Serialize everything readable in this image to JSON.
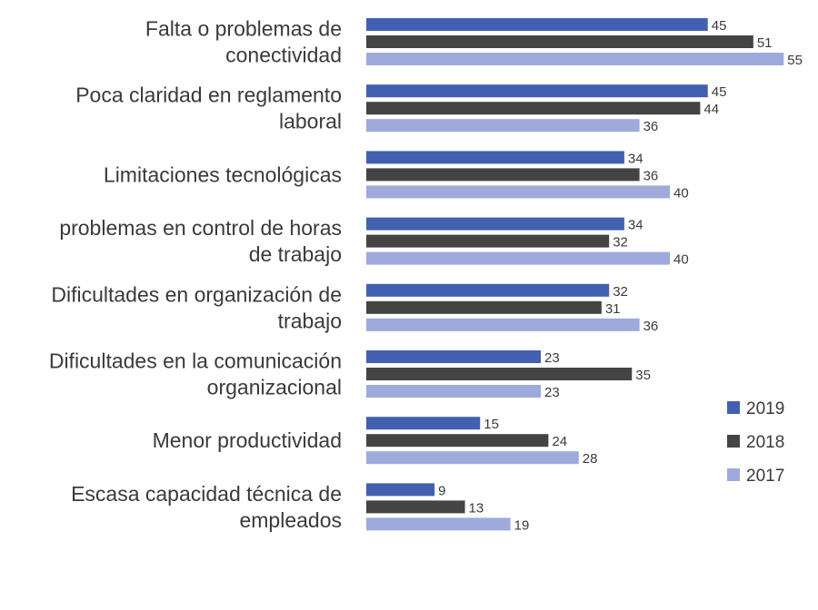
{
  "chart_data": {
    "type": "bar",
    "orientation": "horizontal",
    "categories": [
      [
        "Falta o problemas de",
        "conectividad"
      ],
      [
        "Poca claridad en reglamento",
        "laboral"
      ],
      [
        "Limitaciones tecnológicas"
      ],
      [
        "problemas en control de horas",
        "de trabajo"
      ],
      [
        "Dificultades en organización de",
        "trabajo"
      ],
      [
        "Dificultades en la comunicación",
        "organizacional"
      ],
      [
        "Menor productividad"
      ],
      [
        "Escasa capacidad técnica de",
        "empleados"
      ]
    ],
    "series": [
      {
        "name": "2019",
        "color": "#4360b0",
        "values": [
          45,
          45,
          34,
          34,
          32,
          23,
          15,
          9
        ]
      },
      {
        "name": "2018",
        "color": "#444444",
        "values": [
          51,
          44,
          36,
          32,
          31,
          35,
          24,
          13
        ]
      },
      {
        "name": "2017",
        "color": "#9eaadc",
        "values": [
          55,
          36,
          40,
          40,
          36,
          23,
          28,
          19
        ]
      }
    ],
    "title": "",
    "xlabel": "",
    "ylabel": "",
    "xlim": [
      0,
      55
    ],
    "grid": false,
    "legend": "right"
  }
}
